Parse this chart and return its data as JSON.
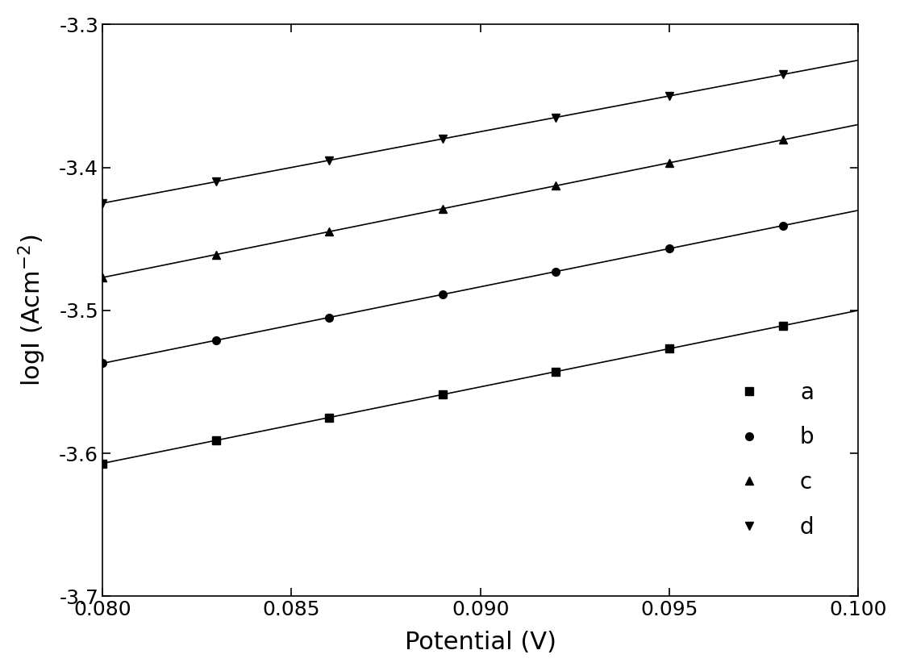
{
  "xlabel": "Potential (V)",
  "ylabel": "logI (Acm$^{-2}$)",
  "xlim": [
    0.08,
    0.1
  ],
  "ylim": [
    -3.7,
    -3.3
  ],
  "xticks": [
    0.08,
    0.085,
    0.09,
    0.095,
    0.1
  ],
  "yticks": [
    -3.7,
    -3.6,
    -3.5,
    -3.4,
    -3.3
  ],
  "series": [
    {
      "label": "a",
      "marker": "s",
      "intercept": -3.607,
      "slope": 5.35,
      "x_pts": [
        0.08,
        0.083,
        0.086,
        0.089,
        0.092,
        0.095,
        0.098
      ]
    },
    {
      "label": "b",
      "marker": "o",
      "intercept": -3.537,
      "slope": 5.35,
      "x_pts": [
        0.08,
        0.083,
        0.086,
        0.089,
        0.092,
        0.095,
        0.098
      ]
    },
    {
      "label": "c",
      "marker": "^",
      "intercept": -3.477,
      "slope": 5.35,
      "x_pts": [
        0.08,
        0.083,
        0.086,
        0.089,
        0.092,
        0.095,
        0.098
      ]
    },
    {
      "label": "d",
      "marker": "v",
      "intercept": -3.425,
      "slope": 5.0,
      "x_pts": [
        0.08,
        0.083,
        0.086,
        0.089,
        0.092,
        0.095,
        0.098
      ]
    }
  ],
  "color": "#000000",
  "background_color": "#ffffff",
  "legend_loc": "lower right",
  "markersize": 7,
  "linewidth": 1.2,
  "xlabel_fontsize": 22,
  "ylabel_fontsize": 22,
  "tick_fontsize": 18,
  "legend_fontsize": 20
}
